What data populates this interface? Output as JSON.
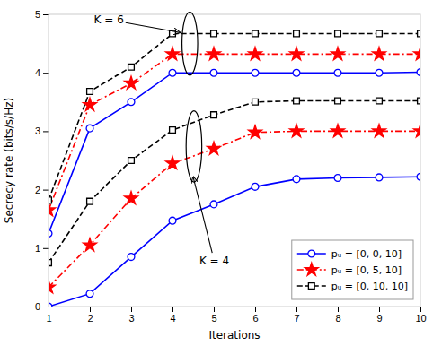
{
  "chart_data": {
    "type": "line",
    "x_label": "Iterations",
    "y_label": "Secrecy rate (bits/s/Hz)",
    "x": [
      1,
      2,
      3,
      4,
      5,
      6,
      7,
      8,
      9,
      10
    ],
    "series": [
      {
        "name": "pᵤ = [0, 0, 10]",
        "color": "#0000ff",
        "marker": "circle",
        "line_style": "solid",
        "values": [
          1.25,
          3.05,
          3.5,
          4.0,
          4.0,
          4.0,
          4.0,
          4.0,
          4.0,
          4.01
        ]
      },
      {
        "name": "pᵤ = [0, 5, 10]",
        "color": "#ff0000",
        "marker": "star",
        "line_style": "dashdot",
        "values": [
          1.65,
          3.45,
          3.82,
          4.32,
          4.32,
          4.32,
          4.32,
          4.32,
          4.32,
          4.32
        ]
      },
      {
        "name": "pᵤ = [0, 10, 10]",
        "color": "#000000",
        "marker": "square",
        "line_style": "dashed",
        "values": [
          1.82,
          3.68,
          4.1,
          4.67,
          4.67,
          4.67,
          4.67,
          4.67,
          4.67,
          4.67
        ]
      },
      {
        "name": "pᵤ = [0, 0, 10]",
        "color": "#0000ff",
        "marker": "circle",
        "line_style": "solid",
        "values": [
          0.0,
          0.22,
          0.85,
          1.47,
          1.75,
          2.05,
          2.18,
          2.2,
          2.21,
          2.22
        ]
      },
      {
        "name": "pᵤ = [0, 5, 10]",
        "color": "#ff0000",
        "marker": "star",
        "line_style": "dashdot",
        "values": [
          0.33,
          1.05,
          1.85,
          2.45,
          2.7,
          2.98,
          3.0,
          3.0,
          3.0,
          3.0
        ]
      },
      {
        "name": "pᵤ = [0, 10, 10]",
        "color": "#000000",
        "marker": "square",
        "line_style": "dashed",
        "values": [
          0.75,
          1.8,
          2.5,
          3.02,
          3.28,
          3.5,
          3.52,
          3.52,
          3.52,
          3.52
        ]
      }
    ],
    "xlim": [
      1,
      10
    ],
    "ylim": [
      0,
      5
    ],
    "xticks": [
      1,
      2,
      3,
      4,
      5,
      6,
      7,
      8,
      9,
      10
    ],
    "yticks": [
      0,
      1,
      2,
      3,
      4,
      5
    ],
    "grid": false,
    "legend": "lower right",
    "annotations": [
      {
        "text": "K = 6",
        "xy": [
          4.18,
          4.69
        ],
        "xytext": [
          2.1,
          4.85
        ],
        "ellipse": {
          "x": 4.42,
          "y": 4.5,
          "width": 0.38,
          "height": 1.08
        }
      },
      {
        "text": "K = 4",
        "xy": [
          4.5,
          2.22
        ],
        "xytext": [
          4.65,
          0.72
        ],
        "ellipse": {
          "x": 4.52,
          "y": 2.74,
          "width": 0.38,
          "height": 1.22
        }
      }
    ]
  }
}
